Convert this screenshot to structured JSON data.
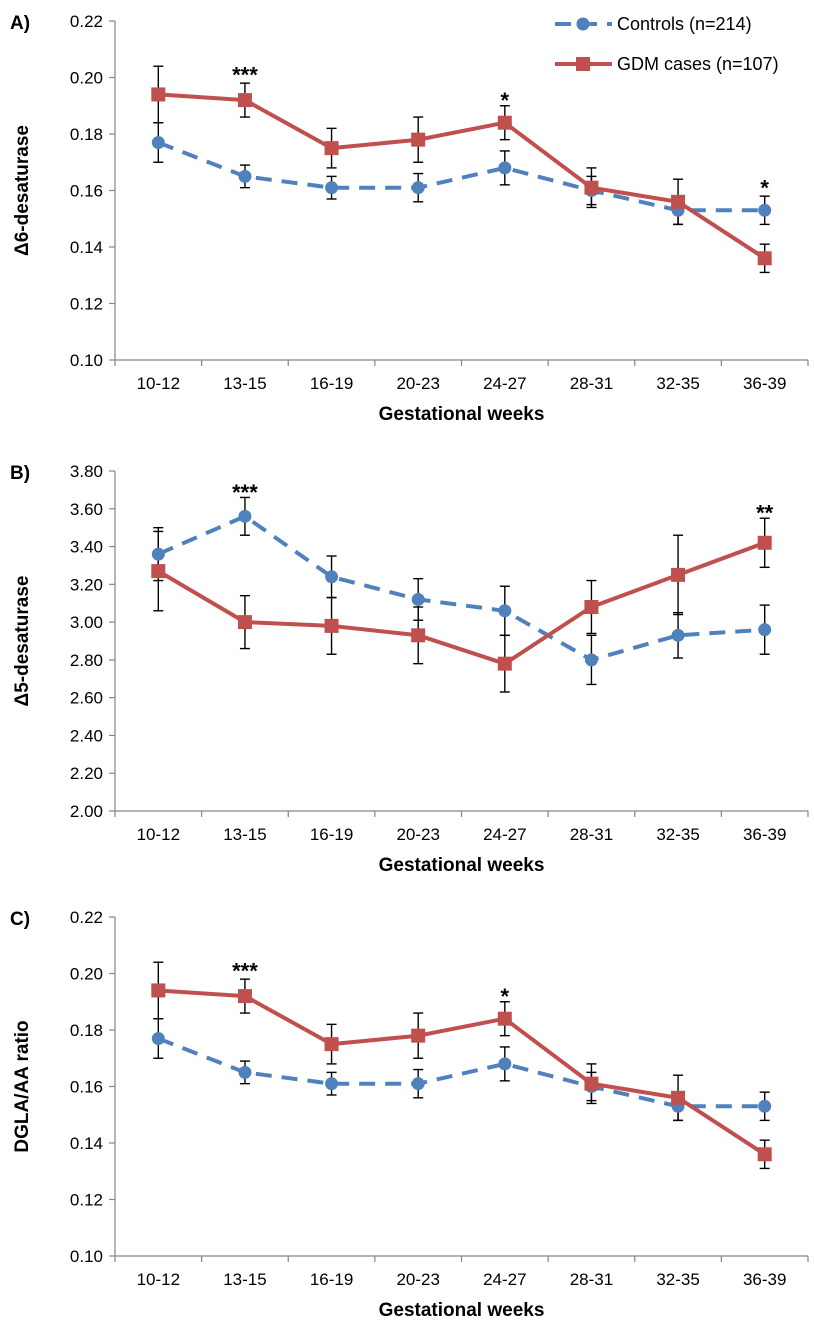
{
  "legend": [
    {
      "name": "Controls (n=214)",
      "color": "#4f81bd",
      "marker": "circle",
      "dash": true
    },
    {
      "name": "GDM cases (n=107)",
      "color": "#c0504d",
      "marker": "square",
      "dash": false
    }
  ],
  "chart_data": [
    {
      "type": "line",
      "panel_label": "A)",
      "xlabel": "Gestational weeks",
      "ylabel": "Δ6-desaturase",
      "categories": [
        "10-12",
        "13-15",
        "16-19",
        "20-23",
        "24-27",
        "28-31",
        "32-35",
        "36-39"
      ],
      "ylim": [
        0.1,
        0.22
      ],
      "yticks": [
        "0.10",
        "0.12",
        "0.14",
        "0.16",
        "0.18",
        "0.20",
        "0.22"
      ],
      "grid": false,
      "legend_position": "top-right",
      "series": [
        {
          "name": "Controls (n=214)",
          "values": [
            0.177,
            0.165,
            0.161,
            0.161,
            0.168,
            0.16,
            0.153,
            0.153
          ],
          "errors": [
            0.007,
            0.004,
            0.004,
            0.005,
            0.006,
            0.005,
            0.005,
            0.005
          ]
        },
        {
          "name": "GDM cases (n=107)",
          "values": [
            0.194,
            0.192,
            0.175,
            0.178,
            0.184,
            0.161,
            0.156,
            0.136
          ],
          "errors": [
            0.01,
            0.006,
            0.007,
            0.008,
            0.006,
            0.007,
            0.008,
            0.005
          ]
        }
      ],
      "annotations": [
        {
          "category": "13-15",
          "text": "***",
          "y": 0.201
        },
        {
          "category": "24-27",
          "text": "*",
          "y": 0.192
        },
        {
          "category": "36-39",
          "text": "*",
          "y": 0.161
        }
      ]
    },
    {
      "type": "line",
      "panel_label": "B)",
      "xlabel": "Gestational weeks",
      "ylabel": "Δ5-desaturase",
      "categories": [
        "10-12",
        "13-15",
        "16-19",
        "20-23",
        "24-27",
        "28-31",
        "32-35",
        "36-39"
      ],
      "ylim": [
        2.0,
        3.8
      ],
      "yticks": [
        "2.00",
        "2.20",
        "2.40",
        "2.60",
        "2.80",
        "3.00",
        "3.20",
        "3.40",
        "3.60",
        "3.80"
      ],
      "grid": false,
      "series": [
        {
          "name": "Controls (n=214)",
          "values": [
            3.36,
            3.56,
            3.24,
            3.12,
            3.06,
            2.8,
            2.93,
            2.96
          ],
          "errors": [
            0.14,
            0.1,
            0.11,
            0.11,
            0.13,
            0.13,
            0.12,
            0.13
          ]
        },
        {
          "name": "GDM cases (n=107)",
          "values": [
            3.27,
            3.0,
            2.98,
            2.93,
            2.78,
            3.08,
            3.25,
            3.42
          ],
          "errors": [
            0.21,
            0.14,
            0.15,
            0.15,
            0.15,
            0.14,
            0.21,
            0.13
          ]
        }
      ],
      "annotations": [
        {
          "category": "13-15",
          "text": "***",
          "y": 3.69
        },
        {
          "category": "36-39",
          "text": "**",
          "y": 3.58
        }
      ]
    },
    {
      "type": "line",
      "panel_label": "C)",
      "xlabel": "Gestational weeks",
      "ylabel": "DGLA/AA ratio",
      "categories": [
        "10-12",
        "13-15",
        "16-19",
        "20-23",
        "24-27",
        "28-31",
        "32-35",
        "36-39"
      ],
      "ylim": [
        0.1,
        0.22
      ],
      "yticks": [
        "0.10",
        "0.12",
        "0.14",
        "0.16",
        "0.18",
        "0.20",
        "0.22"
      ],
      "grid": false,
      "series": [
        {
          "name": "Controls (n=214)",
          "values": [
            0.177,
            0.165,
            0.161,
            0.161,
            0.168,
            0.16,
            0.153,
            0.153
          ],
          "errors": [
            0.007,
            0.004,
            0.004,
            0.005,
            0.006,
            0.005,
            0.005,
            0.005
          ]
        },
        {
          "name": "GDM cases (n=107)",
          "values": [
            0.194,
            0.192,
            0.175,
            0.178,
            0.184,
            0.161,
            0.156,
            0.136
          ],
          "errors": [
            0.01,
            0.006,
            0.007,
            0.008,
            0.006,
            0.007,
            0.008,
            0.005
          ]
        }
      ],
      "annotations": [
        {
          "category": "13-15",
          "text": "***",
          "y": 0.201
        },
        {
          "category": "24-27",
          "text": "*",
          "y": 0.192
        }
      ]
    }
  ]
}
